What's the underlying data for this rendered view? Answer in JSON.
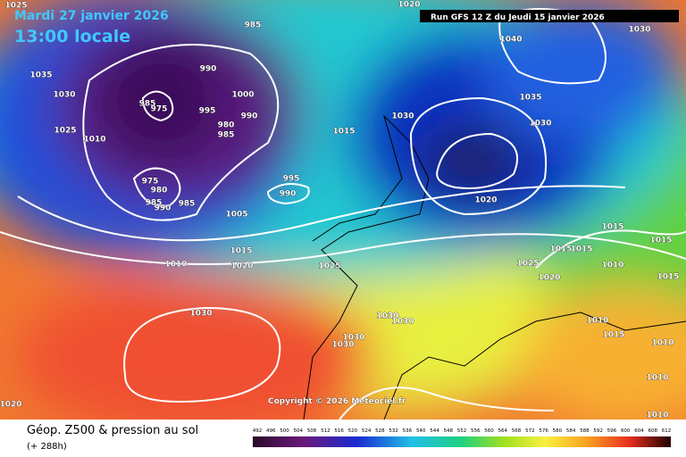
{
  "header": {
    "date": "Mardi 27 janvier 2026",
    "time": "13:00 locale",
    "run": "Run GFS 12 Z du Jeudi 15 janvier 2026"
  },
  "copyright": "Copyright © 2026 Meteociel.fr",
  "footer": {
    "title": "Géop. Z500 & pression au sol",
    "lead": "(+ 288h)"
  },
  "scale": [
    492,
    496,
    500,
    504,
    508,
    512,
    516,
    520,
    524,
    528,
    532,
    536,
    540,
    544,
    548,
    552,
    556,
    560,
    564,
    568,
    572,
    576,
    580,
    584,
    588,
    592,
    596,
    600,
    604,
    608,
    612
  ],
  "isobars": [
    "1025",
    "1035",
    "1030",
    "1025",
    "1010",
    "985",
    "990",
    "1000",
    "995",
    "980",
    "990",
    "985",
    "985",
    "975",
    "975",
    "980",
    "985",
    "990",
    "985",
    "1005",
    "995",
    "990",
    "1015",
    "1020",
    "1010",
    "1030",
    "1025",
    "1015",
    "1030",
    "1020",
    "1040",
    "1030",
    "1035",
    "1030",
    "1020",
    "1025",
    "1020",
    "1015",
    "1015",
    "1015",
    "1010",
    "1015",
    "1015",
    "1010",
    "1015",
    "1010",
    "1030",
    "1030",
    "1030",
    "1030",
    "1010",
    "1020",
    "1010"
  ]
}
